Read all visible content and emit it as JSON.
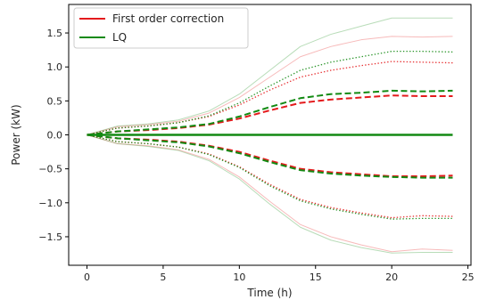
{
  "chart_data": {
    "type": "line",
    "title": "",
    "xlabel": "Time (h)",
    "ylabel": "Power (kW)",
    "xlim": [
      -1.2,
      25.2
    ],
    "ylim": [
      -1.92,
      1.92
    ],
    "xticks": [
      {
        "value": 0,
        "label": "0"
      },
      {
        "value": 5,
        "label": "5"
      },
      {
        "value": 10,
        "label": "10"
      },
      {
        "value": 15,
        "label": "15"
      },
      {
        "value": 20,
        "label": "20"
      },
      {
        "value": 25,
        "label": "25"
      }
    ],
    "yticks": [
      {
        "value": 1.5,
        "label": "1.5"
      },
      {
        "value": 1.0,
        "label": "1.0"
      },
      {
        "value": 0.5,
        "label": "0.5"
      },
      {
        "value": 0.0,
        "label": "0.0"
      },
      {
        "value": -0.5,
        "label": "−0.5"
      },
      {
        "value": -1.0,
        "label": "−1.0"
      },
      {
        "value": -1.5,
        "label": "−1.5"
      }
    ],
    "grid": false,
    "legend_position": "top-left",
    "legend": [
      {
        "label": "First order correction",
        "color": "#e41a1c"
      },
      {
        "label": "LQ",
        "color": "#138a13"
      }
    ],
    "x": [
      0,
      2,
      4,
      6,
      8,
      10,
      12,
      14,
      16,
      18,
      20,
      22,
      24
    ],
    "series": [
      {
        "group": "First order correction",
        "style": "solid",
        "color": "#e41a1c",
        "width": 2.0,
        "opacity": 1.0,
        "values": [
          0.0,
          0.0,
          0.0,
          0.0,
          0.0,
          0.0,
          0.0,
          0.0,
          0.0,
          0.0,
          0.0,
          0.0,
          0.0
        ]
      },
      {
        "group": "LQ",
        "style": "solid",
        "color": "#138a13",
        "width": 2.4,
        "opacity": 1.0,
        "values": [
          0.0,
          0.0,
          0.0,
          0.0,
          0.0,
          0.0,
          0.0,
          0.0,
          0.0,
          0.0,
          0.0,
          0.0,
          0.0
        ]
      },
      {
        "group": "First order correction",
        "style": "dashed",
        "color": "#e41a1c",
        "width": 2.0,
        "opacity": 1.0,
        "values": [
          0.0,
          0.05,
          0.07,
          0.1,
          0.15,
          0.24,
          0.36,
          0.47,
          0.52,
          0.55,
          0.58,
          0.57,
          0.57
        ]
      },
      {
        "group": "LQ",
        "style": "dashed",
        "color": "#138a13",
        "width": 2.0,
        "opacity": 1.0,
        "values": [
          0.0,
          0.05,
          0.08,
          0.11,
          0.16,
          0.27,
          0.41,
          0.54,
          0.6,
          0.62,
          0.65,
          0.64,
          0.65
        ]
      },
      {
        "group": "First order correction",
        "style": "dashed",
        "color": "#e41a1c",
        "width": 2.0,
        "opacity": 1.0,
        "values": [
          0.0,
          -0.05,
          -0.07,
          -0.1,
          -0.16,
          -0.25,
          -0.38,
          -0.5,
          -0.55,
          -0.58,
          -0.61,
          -0.61,
          -0.6
        ]
      },
      {
        "group": "LQ",
        "style": "dashed",
        "color": "#138a13",
        "width": 2.0,
        "opacity": 1.0,
        "values": [
          0.0,
          -0.05,
          -0.08,
          -0.11,
          -0.17,
          -0.27,
          -0.4,
          -0.52,
          -0.57,
          -0.6,
          -0.62,
          -0.63,
          -0.63
        ]
      },
      {
        "group": "First order correction",
        "style": "dotted",
        "color": "#e41a1c",
        "width": 1.3,
        "opacity": 0.9,
        "values": [
          0.0,
          0.1,
          0.13,
          0.18,
          0.27,
          0.44,
          0.66,
          0.85,
          0.95,
          1.02,
          1.08,
          1.07,
          1.06
        ]
      },
      {
        "group": "LQ",
        "style": "dotted",
        "color": "#138a13",
        "width": 1.3,
        "opacity": 0.9,
        "values": [
          0.0,
          0.1,
          0.13,
          0.18,
          0.28,
          0.47,
          0.72,
          0.95,
          1.07,
          1.15,
          1.23,
          1.23,
          1.22
        ]
      },
      {
        "group": "First order correction",
        "style": "dotted",
        "color": "#e41a1c",
        "width": 1.3,
        "opacity": 0.9,
        "values": [
          0.0,
          -0.1,
          -0.13,
          -0.18,
          -0.28,
          -0.47,
          -0.73,
          -0.95,
          -1.07,
          -1.15,
          -1.22,
          -1.19,
          -1.2
        ]
      },
      {
        "group": "LQ",
        "style": "dotted",
        "color": "#138a13",
        "width": 1.3,
        "opacity": 0.9,
        "values": [
          0.0,
          -0.1,
          -0.13,
          -0.18,
          -0.29,
          -0.48,
          -0.75,
          -0.97,
          -1.09,
          -1.17,
          -1.24,
          -1.23,
          -1.23
        ]
      },
      {
        "group": "First order correction",
        "style": "solid",
        "color": "#e41a1c",
        "width": 1.0,
        "opacity": 0.3,
        "values": [
          0.0,
          0.12,
          0.15,
          0.2,
          0.32,
          0.55,
          0.85,
          1.15,
          1.3,
          1.4,
          1.45,
          1.44,
          1.45
        ]
      },
      {
        "group": "LQ",
        "style": "solid",
        "color": "#138a13",
        "width": 1.0,
        "opacity": 0.3,
        "values": [
          0.0,
          0.13,
          0.16,
          0.22,
          0.35,
          0.6,
          0.95,
          1.3,
          1.48,
          1.6,
          1.72,
          1.72,
          1.72
        ]
      },
      {
        "group": "First order correction",
        "style": "solid",
        "color": "#e41a1c",
        "width": 1.0,
        "opacity": 0.3,
        "values": [
          0.0,
          -0.13,
          -0.16,
          -0.22,
          -0.36,
          -0.62,
          -0.98,
          -1.32,
          -1.5,
          -1.62,
          -1.72,
          -1.68,
          -1.7
        ]
      },
      {
        "group": "LQ",
        "style": "solid",
        "color": "#138a13",
        "width": 1.0,
        "opacity": 0.3,
        "values": [
          0.0,
          -0.13,
          -0.17,
          -0.23,
          -0.38,
          -0.65,
          -1.02,
          -1.36,
          -1.55,
          -1.66,
          -1.74,
          -1.73,
          -1.73
        ]
      }
    ]
  }
}
